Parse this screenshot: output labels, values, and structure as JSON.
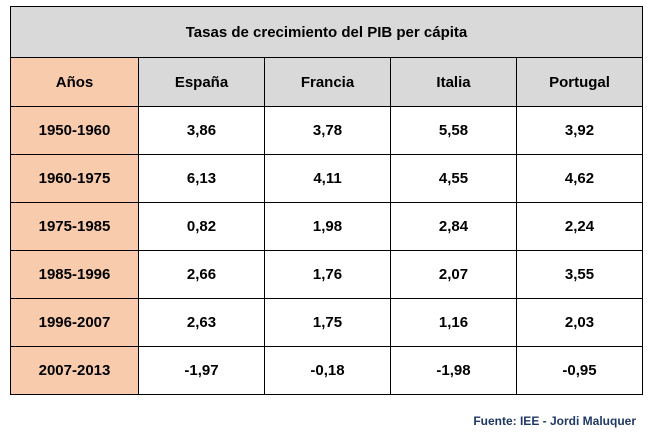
{
  "table": {
    "title": "Tasas de crecimiento del PIB per cápita",
    "headers": [
      "Años",
      "España",
      "Francia",
      "Italia",
      "Portugal"
    ],
    "rows": [
      {
        "period": "1950-1960",
        "values": [
          "3,86",
          "3,78",
          "5,58",
          "3,92"
        ]
      },
      {
        "period": "1960-1975",
        "values": [
          "6,13",
          "4,11",
          "4,55",
          "4,62"
        ]
      },
      {
        "period": "1975-1985",
        "values": [
          "0,82",
          "1,98",
          "2,84",
          "2,24"
        ]
      },
      {
        "period": "1985-1996",
        "values": [
          "2,66",
          "1,76",
          "2,07",
          "3,55"
        ]
      },
      {
        "period": "1996-2007",
        "values": [
          "2,63",
          "1,75",
          "1,16",
          "2,03"
        ]
      },
      {
        "period": "2007-2013",
        "values": [
          "-1,97",
          "-0,18",
          "-1,98",
          "-0,95"
        ]
      }
    ]
  },
  "source": "Fuente: IEE - Jordi Maluquer",
  "colors": {
    "header_gray": "#d9d9d9",
    "period_peach": "#f8cbad",
    "source_text": "#1f3864"
  }
}
